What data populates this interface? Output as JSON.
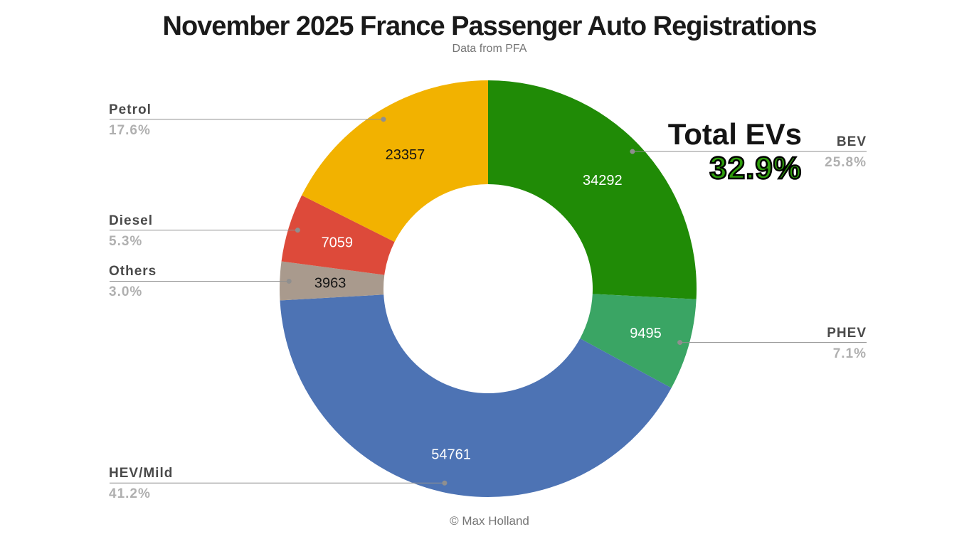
{
  "chart_data": {
    "type": "pie",
    "subtype": "donut",
    "title": "November 2025 France Passenger Auto Registrations",
    "subtitle": "Data from PFA",
    "credit": "© Max Holland",
    "donut_hole_ratio": 0.5,
    "start_angle_deg": 0,
    "direction": "clockwise",
    "order_clockwise_from_top": [
      "BEV",
      "PHEV",
      "HEV/Mild",
      "Others",
      "Diesel",
      "Petrol"
    ],
    "segments": [
      {
        "label": "BEV",
        "value": 34292,
        "pct": 25.8,
        "pct_label": "25.8%",
        "color": "#208b06",
        "value_text_color": "#ffffff"
      },
      {
        "label": "PHEV",
        "value": 9495,
        "pct": 7.1,
        "pct_label": "7.1%",
        "color": "#3aa564",
        "value_text_color": "#ffffff"
      },
      {
        "label": "HEV/Mild",
        "value": 54761,
        "pct": 41.2,
        "pct_label": "41.2%",
        "color": "#4d73b4",
        "value_text_color": "#ffffff"
      },
      {
        "label": "Others",
        "value": 3963,
        "pct": 3.0,
        "pct_label": "3.0%",
        "color": "#a99a8d",
        "value_text_color": "#141414"
      },
      {
        "label": "Diesel",
        "value": 7059,
        "pct": 5.3,
        "pct_label": "5.3%",
        "color": "#dd4a3a",
        "value_text_color": "#ffffff"
      },
      {
        "label": "Petrol",
        "value": 23357,
        "pct": 17.6,
        "pct_label": "17.6%",
        "color": "#f2b200",
        "value_text_color": "#141414"
      }
    ],
    "annotation": {
      "label": "Total EVs",
      "pct_label": "32.9%",
      "color": "#2f9e0c"
    },
    "leader_line_color": "#8f8f8f"
  }
}
